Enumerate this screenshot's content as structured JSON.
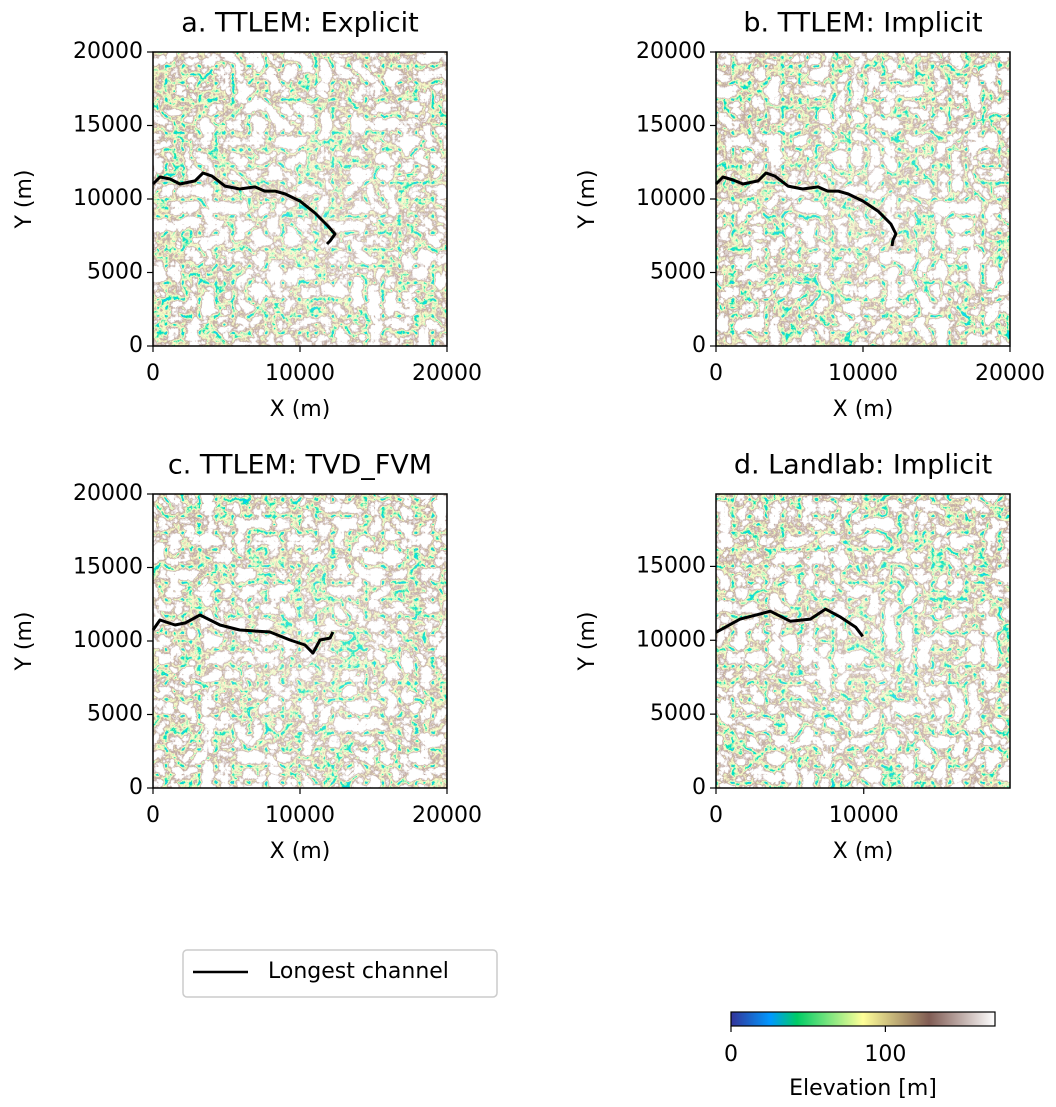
{
  "chart_data": [
    {
      "type": "line",
      "title": "a. TTLEM: Explicit",
      "xlabel": "X (m)",
      "ylabel": "Y (m)",
      "xlim": [
        0,
        20000
      ],
      "ylim": [
        0,
        20000
      ],
      "xticks": [
        0,
        10000,
        20000
      ],
      "yticks": [
        0,
        5000,
        10000,
        15000,
        20000
      ],
      "color": "#000000",
      "x": [
        0,
        476,
        1160,
        1837,
        2860,
        3400,
        4010,
        4900,
        5900,
        6940,
        7600,
        8300,
        9000,
        10000,
        11020,
        11900,
        12380,
        12040,
        11840
      ],
      "values": [
        11020,
        11500,
        11360,
        11020,
        11230,
        11770,
        11560,
        10880,
        10680,
        10820,
        10540,
        10540,
        10340,
        9860,
        9050,
        8160,
        7620,
        7140,
        6940
      ]
    },
    {
      "type": "line",
      "title": "b. TTLEM: Implicit",
      "xlabel": "X (m)",
      "ylabel": "Y (m)",
      "xlim": [
        0,
        20000
      ],
      "ylim": [
        0,
        20000
      ],
      "xticks": [
        0,
        10000,
        20000
      ],
      "yticks": [
        0,
        5000,
        10000,
        15000,
        20000
      ],
      "color": "#000000",
      "x": [
        0,
        476,
        1160,
        1837,
        2860,
        3400,
        4010,
        4900,
        5900,
        6940,
        7600,
        8300,
        9000,
        10000,
        11020,
        11900,
        12240,
        12040,
        11970
      ],
      "values": [
        11020,
        11500,
        11290,
        11020,
        11230,
        11770,
        11560,
        10880,
        10680,
        10820,
        10540,
        10540,
        10340,
        9860,
        9180,
        8300,
        7620,
        7210,
        6800
      ]
    },
    {
      "type": "line",
      "title": "c. TTLEM: TVD_FVM",
      "xlabel": "X (m)",
      "ylabel": "Y (m)",
      "xlim": [
        0,
        20000
      ],
      "ylim": [
        0,
        20000
      ],
      "xticks": [
        0,
        10000,
        20000
      ],
      "yticks": [
        0,
        5000,
        10000,
        15000,
        20000
      ],
      "color": "#000000",
      "x": [
        0,
        476,
        1500,
        2200,
        3200,
        4560,
        5900,
        7960,
        9320,
        10340,
        10880,
        11360,
        12040,
        12240
      ],
      "values": [
        10750,
        11430,
        11090,
        11230,
        11770,
        11090,
        10750,
        10610,
        10070,
        9730,
        9180,
        10070,
        10200,
        10610
      ]
    },
    {
      "type": "line",
      "title": "d. Landlab: Implicit",
      "xlabel": "X (m)",
      "ylabel": "Y (m)",
      "xlim": [
        0,
        19900
      ],
      "ylim": [
        0,
        19900
      ],
      "xticks": [
        0,
        10000
      ],
      "yticks": [
        0,
        5000,
        10000,
        15000
      ],
      "color": "#000000",
      "x": [
        0,
        1630,
        2700,
        3670,
        5030,
        6390,
        7410,
        8440,
        9460,
        9930
      ],
      "values": [
        10540,
        11430,
        11700,
        11970,
        11290,
        11430,
        12110,
        11560,
        10880,
        10270
      ]
    }
  ],
  "legend": {
    "label": "Longest channel",
    "color": "#000000"
  },
  "colorbar": {
    "label": "Elevation [m]",
    "lim": [
      0,
      171
    ],
    "ticks": [
      0,
      100
    ]
  }
}
